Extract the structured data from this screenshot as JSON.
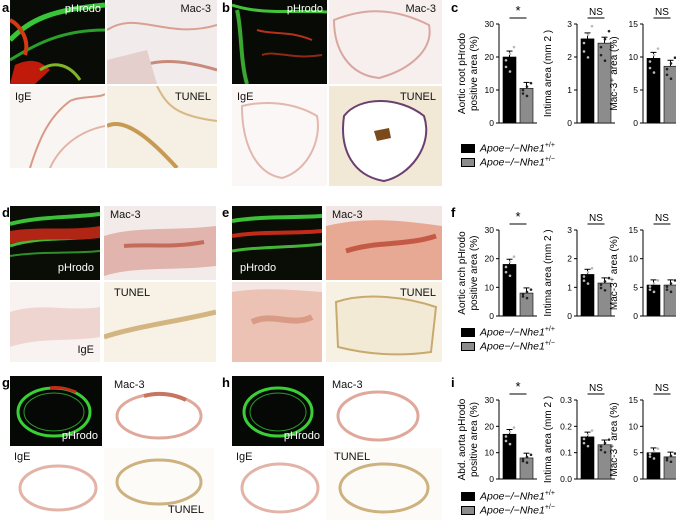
{
  "rows": [
    {
      "panel_letters": [
        "a",
        "b",
        "c"
      ],
      "stain_labels": {
        "fluor": "pHrodo",
        "mac": "Mac-3",
        "ige": "IgE",
        "tunel": "TUNEL"
      },
      "charts": [
        {
          "ylabel_lines": [
            "Aortic root pHrodo",
            "positive area (%)"
          ],
          "ylim": [
            0,
            30
          ],
          "ticks": [
            0,
            10,
            20,
            30
          ],
          "values": [
            20.0,
            10.5
          ],
          "significance": "*"
        },
        {
          "ylabel_lines": [
            "Intima area (mm 2 )"
          ],
          "ylim": [
            0,
            3
          ],
          "ticks": [
            0,
            1,
            2,
            3
          ],
          "values": [
            2.55,
            2.42
          ],
          "significance": "NS"
        },
        {
          "ylabel_lines": [
            "Mac-3⁺ area (%)"
          ],
          "ylim": [
            0,
            15
          ],
          "ticks": [
            0,
            5,
            10,
            15
          ],
          "values": [
            9.8,
            8.6
          ],
          "significance": "NS"
        }
      ]
    },
    {
      "panel_letters": [
        "d",
        "e",
        "f"
      ],
      "stain_labels": {
        "fluor": "pHrodo",
        "mac": "Mac-3",
        "ige": "IgE",
        "tunel": "TUNEL"
      },
      "charts": [
        {
          "ylabel_lines": [
            "Aortic arch pHrodo",
            "positive area (%)"
          ],
          "ylim": [
            0,
            30
          ],
          "ticks": [
            0,
            10,
            20,
            30
          ],
          "values": [
            18.0,
            8.0
          ],
          "significance": "*"
        },
        {
          "ylabel_lines": [
            "Intima area (mm 2 )"
          ],
          "ylim": [
            0,
            3
          ],
          "ticks": [
            0,
            1,
            2,
            3
          ],
          "values": [
            1.45,
            1.15
          ],
          "significance": "NS"
        },
        {
          "ylabel_lines": [
            "Mac-3⁺ area (%)"
          ],
          "ylim": [
            0,
            15
          ],
          "ticks": [
            0,
            5,
            10,
            15
          ],
          "values": [
            5.4,
            5.4
          ],
          "significance": "NS"
        }
      ]
    },
    {
      "panel_letters": [
        "g",
        "h",
        "i"
      ],
      "stain_labels": {
        "fluor": "pHrodo",
        "mac": "Mac-3",
        "ige": "IgE",
        "tunel": "TUNEL"
      },
      "charts": [
        {
          "ylabel_lines": [
            "Abd. aorta pHrodo",
            "positive area (%)"
          ],
          "ylim": [
            0,
            30
          ],
          "ticks": [
            0,
            10,
            20,
            30
          ],
          "values": [
            17.0,
            8.0
          ],
          "significance": "*"
        },
        {
          "ylabel_lines": [
            "Intima area (mm 2 )"
          ],
          "ylim": [
            0,
            0.3
          ],
          "ticks": [
            0.0,
            0.1,
            0.2,
            0.3
          ],
          "values": [
            0.16,
            0.13
          ],
          "significance": "NS"
        },
        {
          "ylabel_lines": [
            "Mac-3⁺ area (%)"
          ],
          "ylim": [
            0,
            15
          ],
          "ticks": [
            0,
            5,
            10,
            15
          ],
          "values": [
            5.0,
            4.2
          ],
          "significance": "NS"
        }
      ]
    }
  ],
  "legend": [
    {
      "genotype": "Apoe−/−Nhe1",
      "sup": "+/+",
      "color": "#000000"
    },
    {
      "genotype": "Apoe−/−Nhe1",
      "sup": "+/−",
      "color": "#8c8c8c"
    }
  ],
  "chart_data": [
    {
      "type": "bar",
      "panel": "c",
      "categories": [
        "Apoe−/−Nhe1+/+",
        "Apoe−/−Nhe1+/−"
      ],
      "ylabel": "Aortic root pHrodo positive area (%)",
      "ylim": [
        0,
        30
      ],
      "values": [
        20.0,
        10.5
      ]
    },
    {
      "type": "bar",
      "panel": "c",
      "categories": [
        "Apoe−/−Nhe1+/+",
        "Apoe−/−Nhe1+/−"
      ],
      "ylabel": "Intima area (mm 2 )",
      "ylim": [
        0,
        3
      ],
      "values": [
        2.55,
        2.42
      ]
    },
    {
      "type": "bar",
      "panel": "c",
      "categories": [
        "Apoe−/−Nhe1+/+",
        "Apoe−/−Nhe1+/−"
      ],
      "ylabel": "Mac-3+ area (%)",
      "ylim": [
        0,
        15
      ],
      "values": [
        9.8,
        8.6
      ]
    },
    {
      "type": "bar",
      "panel": "f",
      "categories": [
        "Apoe−/−Nhe1+/+",
        "Apoe−/−Nhe1+/−"
      ],
      "ylabel": "Aortic arch pHrodo positive area (%)",
      "ylim": [
        0,
        30
      ],
      "values": [
        18.0,
        8.0
      ]
    },
    {
      "type": "bar",
      "panel": "f",
      "categories": [
        "Apoe−/−Nhe1+/+",
        "Apoe−/−Nhe1+/−"
      ],
      "ylabel": "Intima area (mm 2 )",
      "ylim": [
        0,
        3
      ],
      "values": [
        1.45,
        1.15
      ]
    },
    {
      "type": "bar",
      "panel": "f",
      "categories": [
        "Apoe−/−Nhe1+/+",
        "Apoe−/−Nhe1+/−"
      ],
      "ylabel": "Mac-3+ area (%)",
      "ylim": [
        0,
        15
      ],
      "values": [
        5.4,
        5.4
      ]
    },
    {
      "type": "bar",
      "panel": "i",
      "categories": [
        "Apoe−/−Nhe1+/+",
        "Apoe−/−Nhe1+/−"
      ],
      "ylabel": "Abd. aorta pHrodo positive area (%)",
      "ylim": [
        0,
        30
      ],
      "values": [
        17.0,
        8.0
      ]
    },
    {
      "type": "bar",
      "panel": "i",
      "categories": [
        "Apoe−/−Nhe1+/+",
        "Apoe−/−Nhe1+/−"
      ],
      "ylabel": "Intima area (mm 2 )",
      "ylim": [
        0,
        0.3
      ],
      "values": [
        0.16,
        0.13
      ]
    },
    {
      "type": "bar",
      "panel": "i",
      "categories": [
        "Apoe−/−Nhe1+/+",
        "Apoe−/−Nhe1+/−"
      ],
      "ylabel": "Mac-3+ area (%)",
      "ylim": [
        0,
        15
      ],
      "values": [
        5.0,
        4.2
      ]
    }
  ]
}
